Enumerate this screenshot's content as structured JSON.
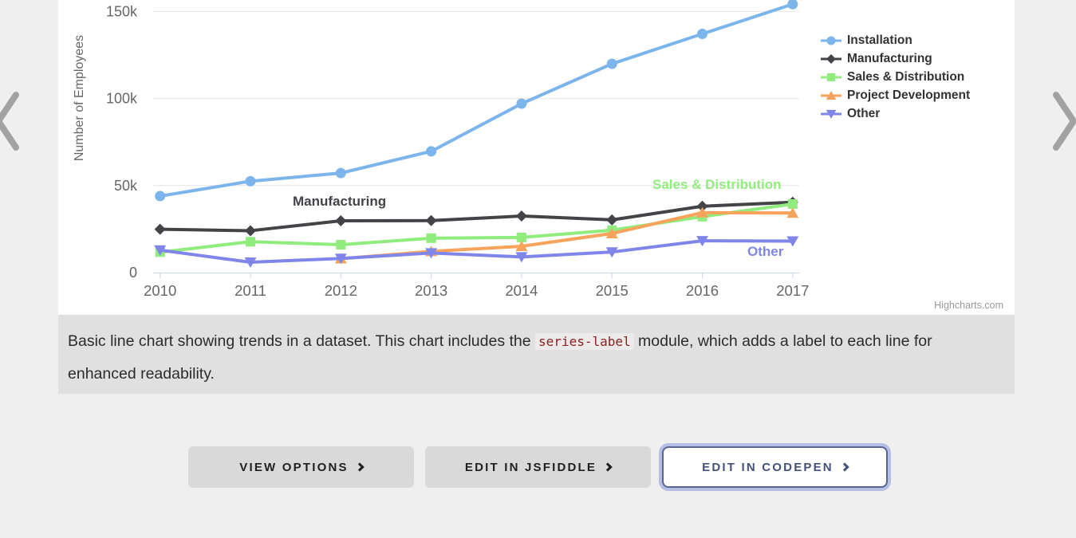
{
  "colors": {
    "page_bg": "#efefef",
    "caption_bg": "#e0e0e0",
    "button_bg": "#d9d9d9",
    "focus_ring": "#b6bee6",
    "focused_button_text": "#44517b",
    "code_text": "#8b2020"
  },
  "chart_data": {
    "type": "line",
    "x": [
      2010,
      2011,
      2012,
      2013,
      2014,
      2015,
      2016,
      2017
    ],
    "xticks": [
      "2010",
      "2011",
      "2012",
      "2013",
      "2014",
      "2015",
      "2016",
      "2017"
    ],
    "ylabel": "Number of Employees",
    "ylim": [
      0,
      160000
    ],
    "yticks": [
      {
        "value": 0,
        "label": "0"
      },
      {
        "value": 50000,
        "label": "50k"
      },
      {
        "value": 100000,
        "label": "100k"
      },
      {
        "value": 150000,
        "label": "150k"
      }
    ],
    "grid": "horizontal",
    "legend_position": "right",
    "series": [
      {
        "name": "Installation",
        "color": "#7cb5ec",
        "marker": "circle",
        "values": [
          43934,
          52503,
          57177,
          69658,
          97031,
          119931,
          137133,
          154175
        ]
      },
      {
        "name": "Manufacturing",
        "color": "#434348",
        "marker": "diamond",
        "values": [
          24916,
          24064,
          29742,
          29851,
          32490,
          30282,
          38121,
          40434
        ]
      },
      {
        "name": "Sales & Distribution",
        "color": "#90ed7d",
        "marker": "square",
        "values": [
          11744,
          17722,
          16005,
          19771,
          20185,
          24377,
          32147,
          39387
        ]
      },
      {
        "name": "Project Development",
        "color": "#f7a35c",
        "marker": "triangle",
        "values": [
          null,
          null,
          7988,
          12169,
          15112,
          22452,
          34400,
          34227
        ]
      },
      {
        "name": "Other",
        "color": "#8085e9",
        "marker": "triangle-down",
        "values": [
          12908,
          5948,
          8105,
          11248,
          8989,
          11816,
          18274,
          18111
        ]
      }
    ],
    "series_labels": [
      {
        "label": "Manufacturing",
        "color": "#434348",
        "x": 294,
        "y": 243
      },
      {
        "label": "Sales & Distribution",
        "color": "#90ed7d",
        "x": 745,
        "y": 222
      },
      {
        "label": "Other",
        "color": "#8085e9",
        "x": 864,
        "y": 306
      }
    ],
    "credits": "Highcharts.com"
  },
  "caption": {
    "text_before": "Basic line chart showing trends in a dataset. This chart includes the ",
    "code": "series-label",
    "text_after": " module, which adds a label to each line for enhanced readability."
  },
  "buttons": {
    "items": [
      {
        "label": "VIEW OPTIONS",
        "variant": "gray"
      },
      {
        "label": "EDIT IN JSFIDDLE",
        "variant": "gray"
      },
      {
        "label": "EDIT IN CODEPEN",
        "variant": "focused"
      }
    ]
  }
}
